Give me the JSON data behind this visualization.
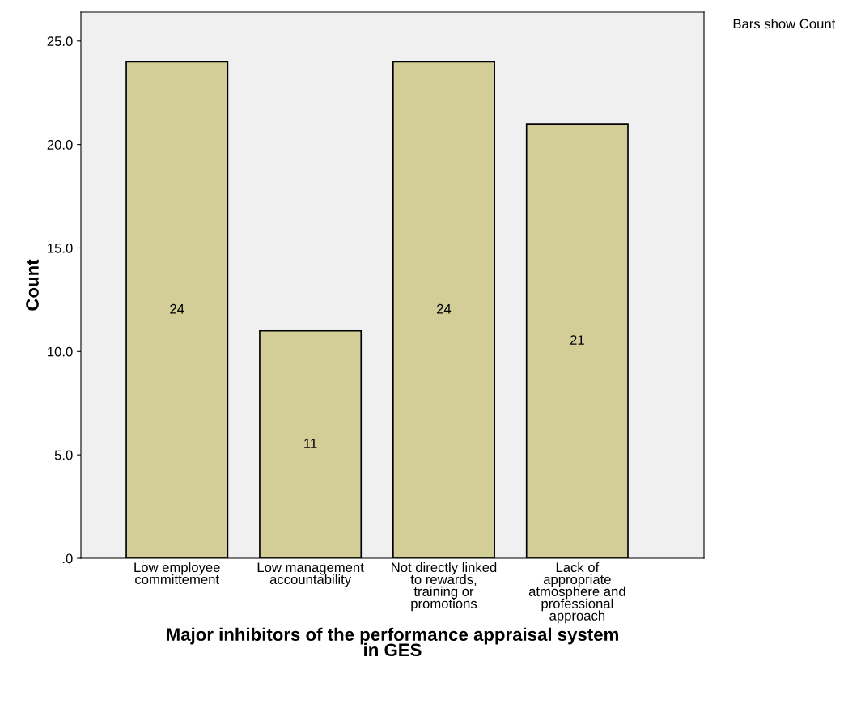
{
  "chart_data": {
    "type": "bar",
    "xlabel": "Major inhibitors of the performance appraisal system\nin GES",
    "ylabel": "Count",
    "categories": [
      "Low employee\ncommittement",
      "Low management\naccountability",
      "Not directly linked\nto rewards,\ntraining or\npromotions",
      "Lack of\nappropriate\natmosphere and\nprofessional\napproach"
    ],
    "values": [
      24,
      11,
      24,
      21
    ],
    "color": "#d3ce97",
    "data_labels": true,
    "ylim": [
      0,
      26.4
    ],
    "yticks": [
      {
        "value": 0,
        "label": ".0"
      },
      {
        "value": 5,
        "label": "5.0"
      },
      {
        "value": 10,
        "label": "10.0"
      },
      {
        "value": 15,
        "label": "15.0"
      },
      {
        "value": 20,
        "label": "20.0"
      },
      {
        "value": 25,
        "label": "25.0"
      }
    ],
    "annotations": [
      "Bars show Count"
    ],
    "grid": false,
    "legend": false
  }
}
